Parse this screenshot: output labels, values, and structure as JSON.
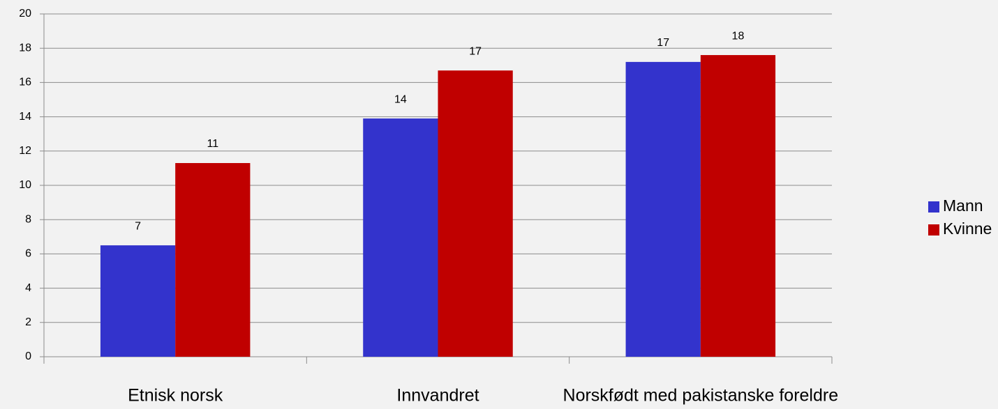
{
  "chart_data": {
    "type": "bar",
    "categories": [
      "Etnisk norsk",
      "Innvandret",
      "Norskfødt med pakistanske foreldre"
    ],
    "series": [
      {
        "name": "Mann",
        "color": "#3333cc",
        "values": [
          6.5,
          13.9,
          17.2
        ],
        "value_labels": [
          "7",
          "14",
          "17"
        ]
      },
      {
        "name": "Kvinne",
        "color": "#c00000",
        "values": [
          11.3,
          16.7,
          17.6
        ],
        "value_labels": [
          "11",
          "17",
          "18"
        ]
      }
    ],
    "ylim": [
      0,
      20
    ],
    "yticks": [
      0,
      2,
      4,
      6,
      8,
      10,
      12,
      14,
      16,
      18,
      20
    ],
    "grid": true,
    "legend": "right"
  }
}
